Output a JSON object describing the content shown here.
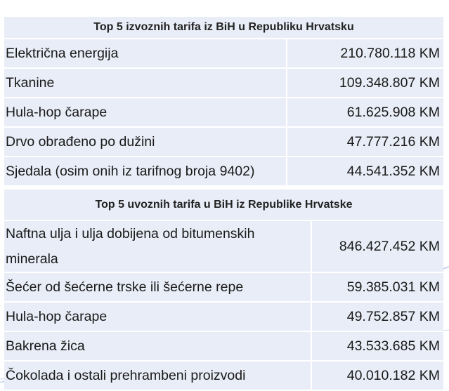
{
  "export_table": {
    "title": "Top 5 izvoznih tarifa iz BiH u Republiku Hrvatsku",
    "rows": [
      {
        "name": "Električna energija",
        "value": "210.780.118 KM"
      },
      {
        "name": "Tkanine",
        "value": "109.348.807 KM"
      },
      {
        "name": "Hula-hop čarape",
        "value": "61.625.908 KM"
      },
      {
        "name": "Drvo obrađeno po dužini",
        "value": "47.777.216 KM"
      },
      {
        "name": "Sjedala (osim onih iz tarifnog broja 9402)",
        "value": "44.541.352 KM"
      }
    ]
  },
  "import_table": {
    "title": "Top 5 uvoznih tarifa u BiH iz Republike Hrvatske",
    "rows": [
      {
        "name": "Naftna ulja i ulja dobijena od bitumenskih minerala",
        "value": "846.427.452 KM"
      },
      {
        "name": "Šećer od šećerne trske ili šećerne repe",
        "value": "59.385.031 KM"
      },
      {
        "name": "Hula-hop čarape",
        "value": "49.752.857 KM"
      },
      {
        "name": "Bakrena žica",
        "value": "43.533.685 KM"
      },
      {
        "name": "Čokolada i ostali prehrambeni proizvodi",
        "value": "40.010.182 KM"
      }
    ]
  },
  "colors": {
    "cell_background": "#e9edf7",
    "grid_lines": "#ffffff",
    "text": "#1a1a1a",
    "accent_swoosh": "#c9d4ef"
  }
}
